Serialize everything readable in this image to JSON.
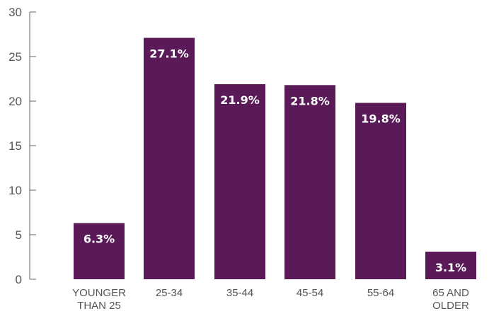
{
  "chart_data": {
    "type": "bar",
    "categories": [
      [
        "YOUNGER",
        "THAN 25"
      ],
      [
        "25-34"
      ],
      [
        "35-44"
      ],
      [
        "45-54"
      ],
      [
        "55-64"
      ],
      [
        "65 AND",
        "OLDER"
      ]
    ],
    "values": [
      6.3,
      27.1,
      21.9,
      21.8,
      19.8,
      3.1
    ],
    "data_labels": [
      "6.3%",
      "27.1%",
      "21.9%",
      "21.8%",
      "19.8%",
      "3.1%"
    ],
    "y_ticks": [
      0,
      5,
      10,
      15,
      20,
      25,
      30
    ],
    "ylim": [
      0,
      30
    ],
    "title": "",
    "xlabel": "",
    "ylabel": "",
    "grid": false,
    "legend": "none",
    "bar_color": "#5a1a57",
    "label_color": "#ffffff",
    "axis_color": "#666666"
  }
}
